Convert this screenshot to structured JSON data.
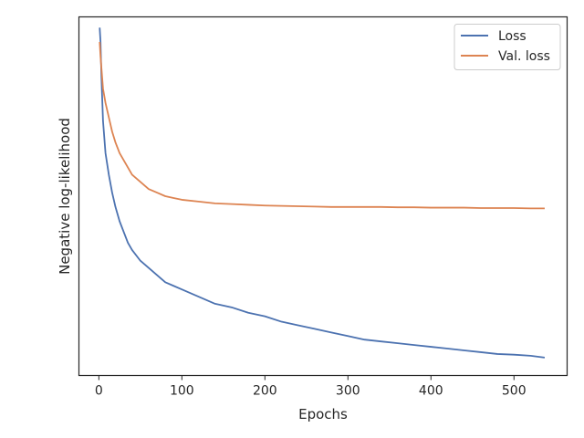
{
  "chart_data": {
    "type": "line",
    "title": "",
    "xlabel": "Epochs",
    "ylabel": "Negative log-likelihood",
    "xlim": [
      -24,
      564
    ],
    "ylim": [
      0,
      1
    ],
    "y_ticks_shown": false,
    "x_ticks": [
      0,
      100,
      200,
      300,
      400,
      500
    ],
    "x_tick_labels": [
      "0",
      "100",
      "200",
      "300",
      "400",
      "500"
    ],
    "grid": false,
    "legend_position": "top-right",
    "series": [
      {
        "name": "Loss",
        "color": "#4c72b0",
        "x": [
          1,
          2,
          3,
          5,
          8,
          12,
          16,
          20,
          25,
          30,
          35,
          40,
          50,
          60,
          70,
          80,
          90,
          100,
          120,
          140,
          160,
          180,
          200,
          220,
          240,
          260,
          280,
          300,
          320,
          340,
          360,
          380,
          400,
          420,
          440,
          460,
          480,
          500,
          520,
          537
        ],
        "y": [
          0.97,
          0.93,
          0.84,
          0.71,
          0.62,
          0.56,
          0.51,
          0.47,
          0.43,
          0.4,
          0.37,
          0.35,
          0.32,
          0.3,
          0.28,
          0.26,
          0.25,
          0.24,
          0.22,
          0.2,
          0.19,
          0.175,
          0.165,
          0.15,
          0.14,
          0.13,
          0.12,
          0.11,
          0.1,
          0.095,
          0.09,
          0.085,
          0.08,
          0.075,
          0.07,
          0.065,
          0.06,
          0.058,
          0.055,
          0.05
        ]
      },
      {
        "name": "Val. loss",
        "color": "#dd8452",
        "x": [
          1,
          2,
          3,
          5,
          8,
          12,
          16,
          20,
          25,
          30,
          35,
          40,
          50,
          60,
          70,
          80,
          90,
          100,
          120,
          140,
          160,
          180,
          200,
          220,
          240,
          260,
          280,
          300,
          320,
          340,
          360,
          380,
          400,
          420,
          440,
          460,
          480,
          500,
          520,
          537
        ],
        "y": [
          0.93,
          0.89,
          0.86,
          0.8,
          0.76,
          0.72,
          0.68,
          0.65,
          0.62,
          0.6,
          0.58,
          0.56,
          0.54,
          0.52,
          0.51,
          0.5,
          0.495,
          0.49,
          0.485,
          0.48,
          0.478,
          0.476,
          0.474,
          0.473,
          0.472,
          0.471,
          0.47,
          0.47,
          0.47,
          0.47,
          0.469,
          0.469,
          0.468,
          0.468,
          0.468,
          0.467,
          0.467,
          0.467,
          0.466,
          0.466
        ]
      }
    ]
  }
}
